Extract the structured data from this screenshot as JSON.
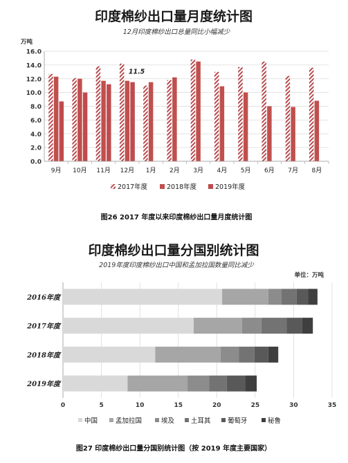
{
  "chart1": {
    "title": "印度棉纱出口量月度统计图",
    "subtitle": "12月印度棉纱出口总量同比小幅减少",
    "unit": "万吨",
    "caption": "图26   2017 年度以来印度棉纱出口量月度统计图",
    "annotation": {
      "text": "11.5",
      "category": "12月",
      "series": 2
    }
  },
  "chart2": {
    "title": "印度棉纱出口量分国别统计图",
    "subtitle": "2019年度印度棉纱出口中国和孟加拉国数量同比减少",
    "unit": "单位：万吨",
    "caption": "图27   印度棉纱出口量分国别统计图（按 2019 年度主要国家）"
  },
  "chart_data": [
    {
      "type": "bar",
      "title": "印度棉纱出口量月度统计图",
      "subtitle": "12月印度棉纱出口总量同比小幅减少",
      "ylabel": "万吨",
      "ylim": [
        0,
        16
      ],
      "yticks": [
        "0.0",
        "2.0",
        "4.0",
        "6.0",
        "8.0",
        "10.0",
        "12.0",
        "14.0",
        "16.0"
      ],
      "categories": [
        "9月",
        "10月",
        "11月",
        "12月",
        "1月",
        "2月",
        "3月",
        "4月",
        "5月",
        "6月",
        "7月",
        "8月"
      ],
      "series": [
        {
          "name": "2017年度",
          "color": "#b84a4e",
          "values": [
            12.7,
            12.1,
            13.8,
            14.2,
            11.0,
            11.8,
            14.8,
            13.0,
            13.7,
            14.5,
            12.4,
            13.6
          ]
        },
        {
          "name": "2018年度",
          "color": "#c0504d",
          "values": [
            12.3,
            12.0,
            11.7,
            11.7,
            11.5,
            12.2,
            14.5,
            10.9,
            10.0,
            8.0,
            7.9,
            8.8
          ]
        },
        {
          "name": "2019年度",
          "color": "#bf4b4e",
          "values": [
            8.7,
            10.0,
            11.2,
            11.5,
            null,
            null,
            null,
            null,
            null,
            null,
            null,
            null
          ]
        }
      ],
      "legend": "bottom",
      "grid": true
    },
    {
      "type": "bar",
      "orientation": "horizontal",
      "stacked": true,
      "title": "印度棉纱出口量分国别统计图",
      "subtitle": "2019年度印度棉纱出口中国和孟加拉国数量同比减少",
      "unit": "单位：万吨",
      "xlim": [
        0,
        35
      ],
      "xticks": [
        "0",
        "5",
        "10",
        "15",
        "20",
        "25",
        "30",
        "35"
      ],
      "categories": [
        "2016年度",
        "2017年度",
        "2018年度",
        "2019年度"
      ],
      "series": [
        {
          "name": "中国",
          "color": "#d9d9d9",
          "values": [
            20.7,
            17.0,
            12.0,
            8.4
          ]
        },
        {
          "name": "孟加拉国",
          "color": "#a6a6a6",
          "values": [
            6.0,
            6.3,
            8.5,
            7.8
          ]
        },
        {
          "name": "埃及",
          "color": "#8c8c8c",
          "values": [
            1.7,
            2.5,
            2.4,
            2.8
          ]
        },
        {
          "name": "土耳其",
          "color": "#737373",
          "values": [
            2.0,
            3.3,
            2.0,
            2.3
          ]
        },
        {
          "name": "葡萄牙",
          "color": "#595959",
          "values": [
            1.5,
            2.0,
            1.8,
            2.4
          ]
        },
        {
          "name": "秘鲁",
          "color": "#3f3f3f",
          "values": [
            1.2,
            1.4,
            1.3,
            1.5
          ]
        }
      ],
      "legend": "bottom",
      "grid": true
    }
  ]
}
